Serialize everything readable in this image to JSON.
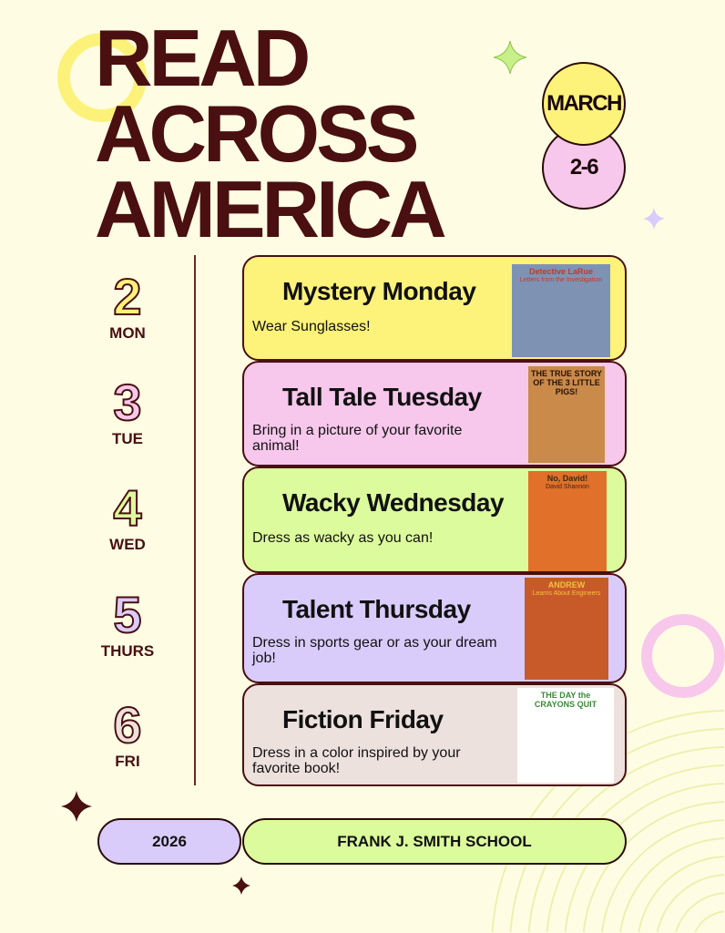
{
  "title": [
    "READ",
    "ACROSS",
    "AMERICA"
  ],
  "dates": {
    "month": "MARCH",
    "range": "2-6"
  },
  "days": [
    {
      "num": "2",
      "abbr": "MON",
      "color": "#fdf27a",
      "title": "Mystery Monday",
      "desc": "Wear Sunglasses!",
      "book": "Detective LaRue",
      "book_sub": "Letters from the Investigation"
    },
    {
      "num": "3",
      "abbr": "TUE",
      "color": "#f7c7ec",
      "title": "Tall Tale Tuesday",
      "desc": "Bring in a picture of your favorite animal!",
      "book": "THE TRUE STORY OF THE 3 LITTLE PIGS!",
      "book_sub": ""
    },
    {
      "num": "4",
      "abbr": "WED",
      "color": "#dcfb9c",
      "title": "Wacky Wednesday",
      "desc": "Dress as wacky as you can!",
      "book": "No, David!",
      "book_sub": "David Shannon"
    },
    {
      "num": "5",
      "abbr": "THURS",
      "color": "#d9ccfb",
      "title": "Talent Thursday",
      "desc": "Dress in sports gear or as your dream job!",
      "book": "ANDREW",
      "book_sub": "Learns About Engineers"
    },
    {
      "num": "6",
      "abbr": "FRI",
      "color": "#ede1dd",
      "title": "Fiction Friday",
      "desc": "Dress in a color inspired by your favorite book!",
      "book": "THE DAY the CRAYONS QUIT",
      "book_sub": ""
    }
  ],
  "footer": {
    "year": "2026",
    "school": "FRANK J. SMITH SCHOOL"
  },
  "colors": {
    "brown": "#4a0f10",
    "background": "#fefde4",
    "yellow": "#fdf27a",
    "pink": "#f7c7ec",
    "green": "#dcfb9c",
    "purple": "#d9ccfb"
  }
}
